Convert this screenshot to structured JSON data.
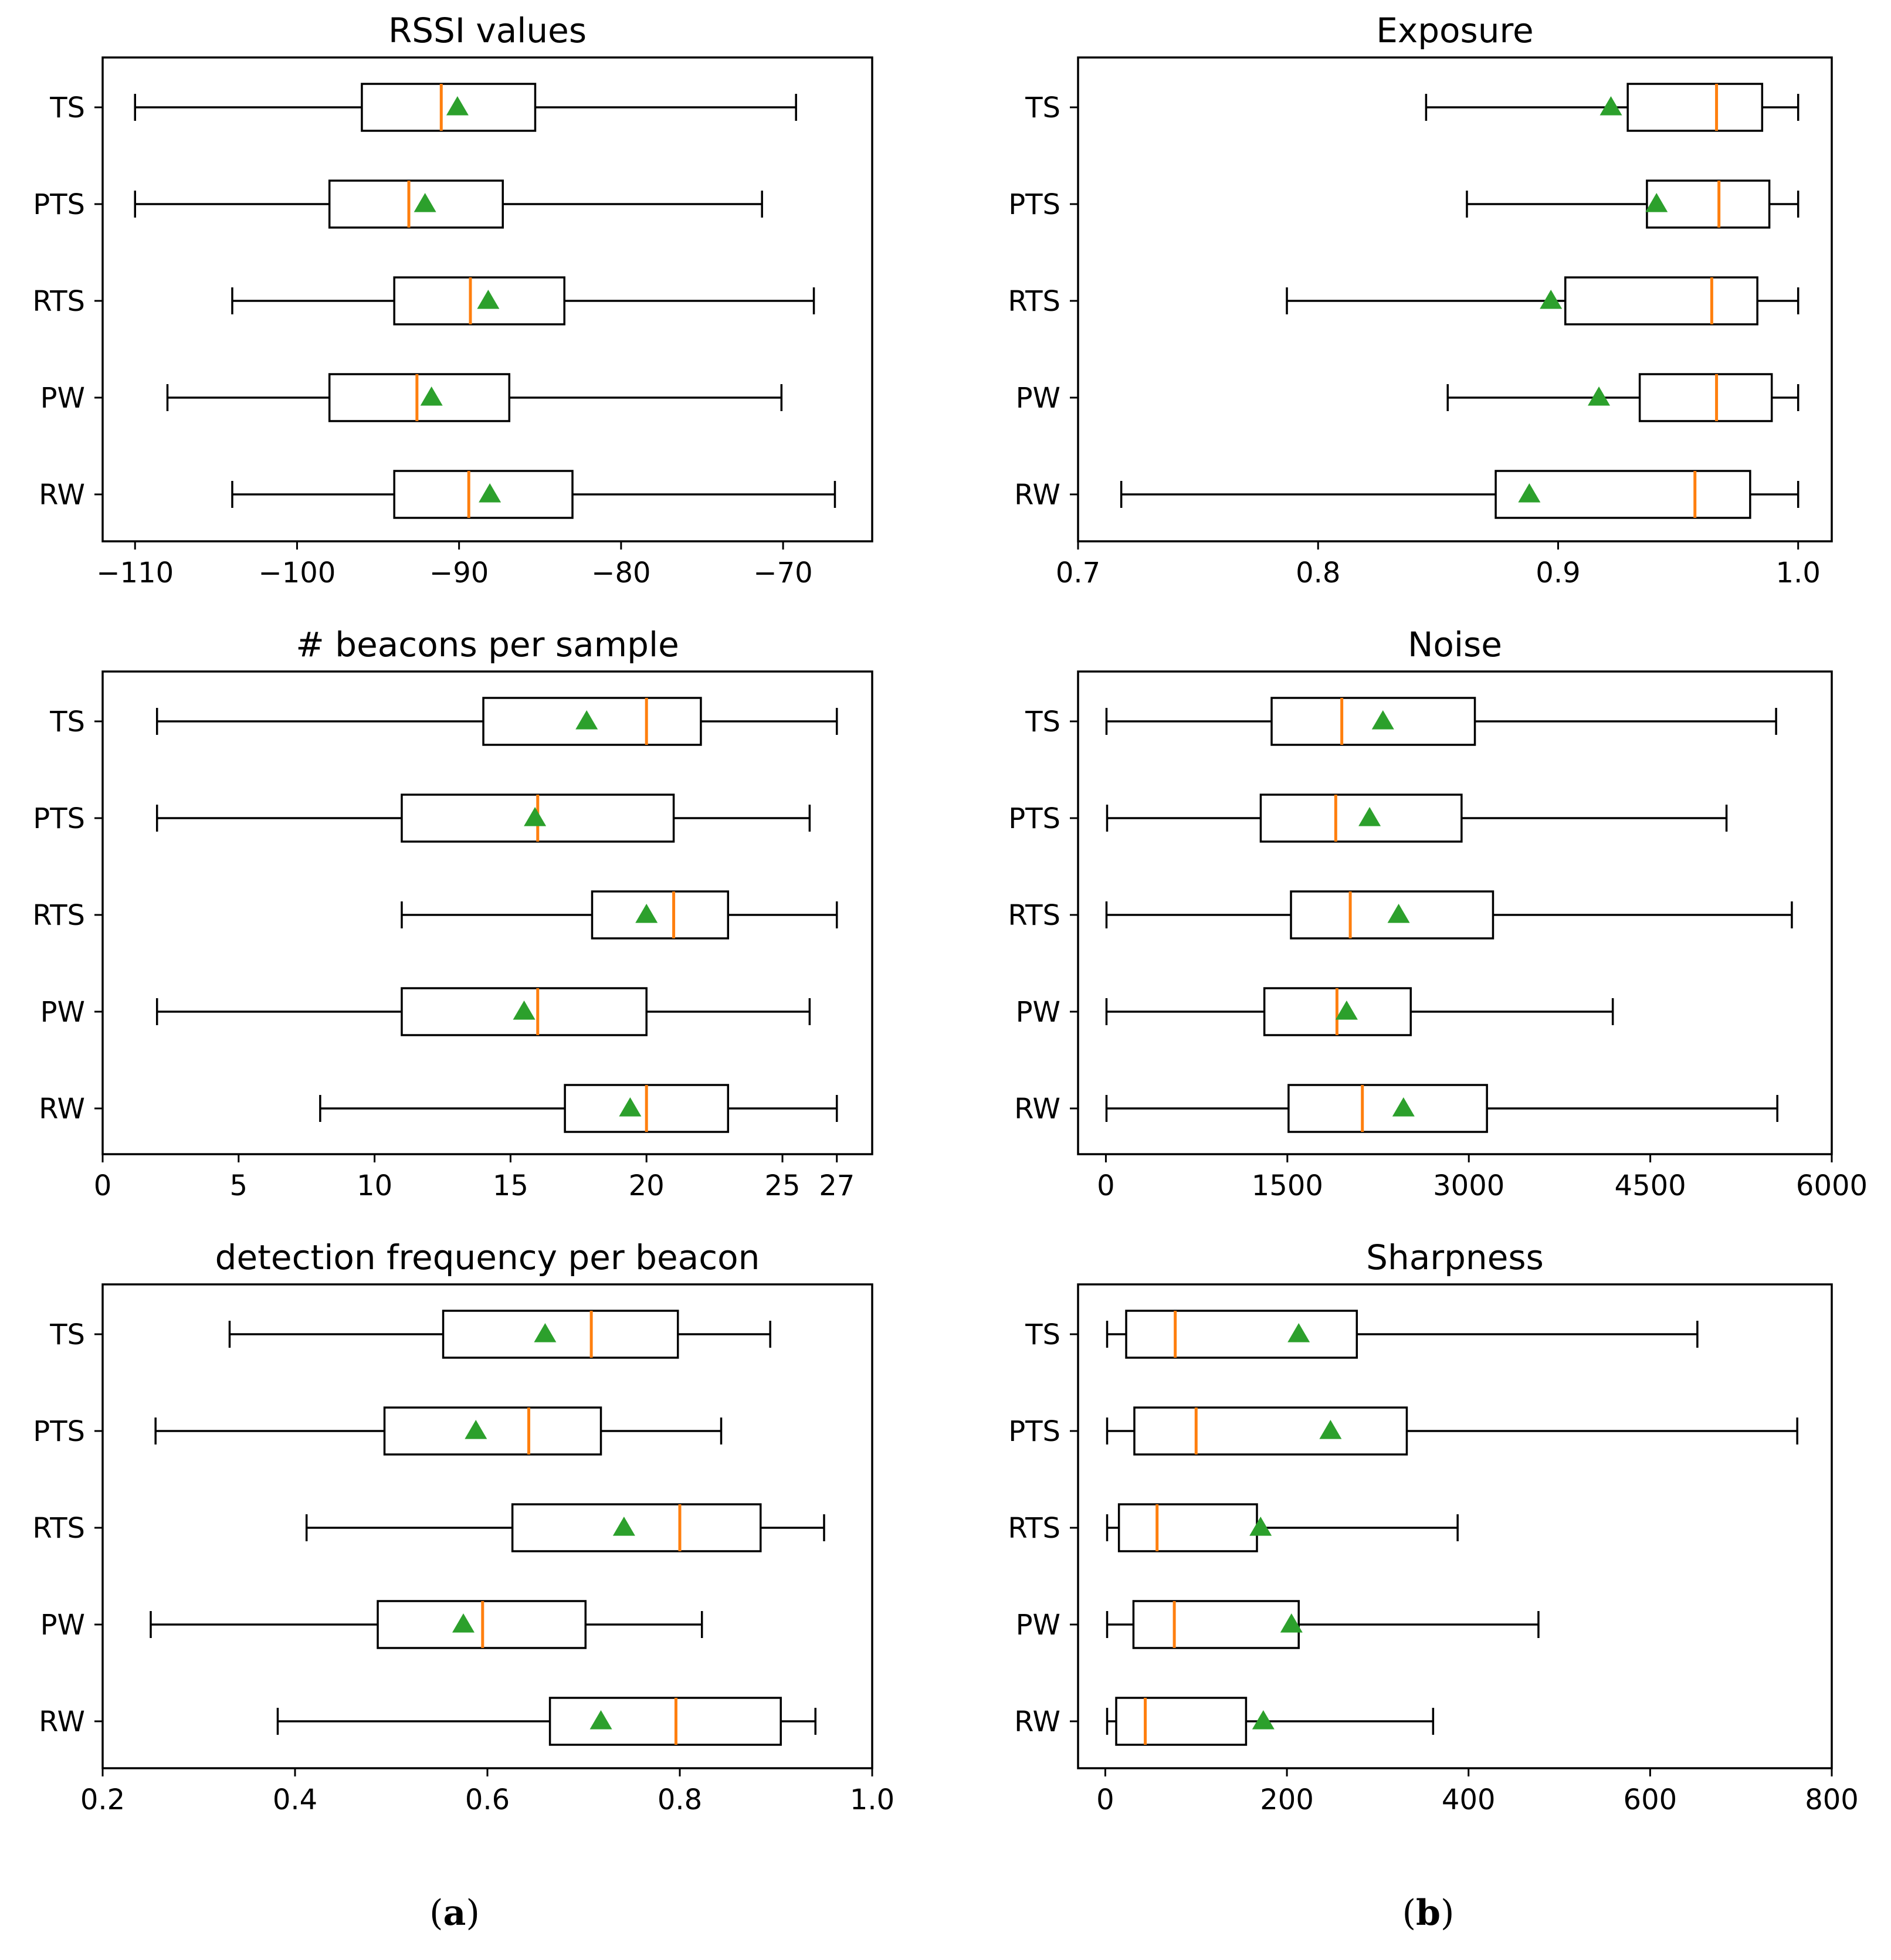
{
  "colors": {
    "box_edge": "#000000",
    "median": "#ff7f0e",
    "mean_marker": "#2ca02c",
    "background": "#ffffff"
  },
  "captions": [
    {
      "id": "a",
      "text": "a"
    },
    {
      "id": "b",
      "text": "b"
    }
  ],
  "chart_data": [
    {
      "type": "boxplot",
      "orientation": "horizontal",
      "title": "RSSI values",
      "categories": [
        "TS",
        "PTS",
        "RTS",
        "PW",
        "RW"
      ],
      "xlim": [
        -112,
        -64.5
      ],
      "xticks": [
        -110,
        -100,
        -90,
        -80,
        -70
      ],
      "xtick_labels": [
        "−110",
        "−100",
        "−90",
        "−80",
        "−70"
      ],
      "boxes": [
        {
          "label": "TS",
          "whislo": -110,
          "q1": -96,
          "med": -91.1,
          "q3": -85.3,
          "whishi": -69.2,
          "mean": -90.1
        },
        {
          "label": "PTS",
          "whislo": -110,
          "q1": -98,
          "med": -93.1,
          "q3": -87.3,
          "whishi": -71.3,
          "mean": -92.1
        },
        {
          "label": "RTS",
          "whislo": -104,
          "q1": -94,
          "med": -89.3,
          "q3": -83.5,
          "whishi": -68.1,
          "mean": -88.2
        },
        {
          "label": "PW",
          "whislo": -108,
          "q1": -98,
          "med": -92.6,
          "q3": -86.9,
          "whishi": -70.1,
          "mean": -91.7
        },
        {
          "label": "RW",
          "whislo": -104,
          "q1": -94,
          "med": -89.4,
          "q3": -83.0,
          "whishi": -66.8,
          "mean": -88.1
        }
      ]
    },
    {
      "type": "boxplot",
      "orientation": "horizontal",
      "title": "Exposure",
      "categories": [
        "TS",
        "PTS",
        "RTS",
        "PW",
        "RW"
      ],
      "xlim": [
        0.7,
        1.014
      ],
      "xticks": [
        0.7,
        0.8,
        0.9,
        1.0
      ],
      "xtick_labels": [
        "0.7",
        "0.8",
        "0.9",
        "1.0"
      ],
      "boxes": [
        {
          "label": "TS",
          "whislo": 0.845,
          "q1": 0.929,
          "med": 0.966,
          "q3": 0.985,
          "whishi": 1.0,
          "mean": 0.922
        },
        {
          "label": "PTS",
          "whislo": 0.862,
          "q1": 0.937,
          "med": 0.967,
          "q3": 0.988,
          "whishi": 1.0,
          "mean": 0.941
        },
        {
          "label": "RTS",
          "whislo": 0.787,
          "q1": 0.903,
          "med": 0.964,
          "q3": 0.983,
          "whishi": 1.0,
          "mean": 0.897
        },
        {
          "label": "PW",
          "whislo": 0.854,
          "q1": 0.934,
          "med": 0.966,
          "q3": 0.989,
          "whishi": 1.0,
          "mean": 0.917
        },
        {
          "label": "RW",
          "whislo": 0.718,
          "q1": 0.874,
          "med": 0.957,
          "q3": 0.98,
          "whishi": 1.0,
          "mean": 0.888
        }
      ]
    },
    {
      "type": "boxplot",
      "orientation": "horizontal",
      "title": "# beacons per sample",
      "categories": [
        "TS",
        "PTS",
        "RTS",
        "PW",
        "RW"
      ],
      "xlim": [
        0,
        28.3
      ],
      "xticks": [
        0,
        5,
        10,
        15,
        20,
        25,
        27
      ],
      "xtick_labels": [
        "0",
        "5",
        "10",
        "15",
        "20",
        "25",
        "27"
      ],
      "boxes": [
        {
          "label": "TS",
          "whislo": 2,
          "q1": 14,
          "med": 20,
          "q3": 22,
          "whishi": 27,
          "mean": 17.8
        },
        {
          "label": "PTS",
          "whislo": 2,
          "q1": 11,
          "med": 16,
          "q3": 21,
          "whishi": 26,
          "mean": 15.9
        },
        {
          "label": "RTS",
          "whislo": 11,
          "q1": 18,
          "med": 21,
          "q3": 23,
          "whishi": 27,
          "mean": 20.0
        },
        {
          "label": "PW",
          "whislo": 2,
          "q1": 11,
          "med": 16,
          "q3": 20,
          "whishi": 26,
          "mean": 15.5
        },
        {
          "label": "RW",
          "whislo": 8,
          "q1": 17,
          "med": 20,
          "q3": 23,
          "whishi": 27,
          "mean": 19.4
        }
      ]
    },
    {
      "type": "boxplot",
      "orientation": "horizontal",
      "title": "Noise",
      "categories": [
        "TS",
        "PTS",
        "RTS",
        "PW",
        "RW"
      ],
      "xlim": [
        -230,
        6000
      ],
      "xticks": [
        0,
        1500,
        3000,
        4500,
        6000
      ],
      "xtick_labels": [
        "0",
        "1500",
        "3000",
        "4500",
        "6000"
      ],
      "boxes": [
        {
          "label": "TS",
          "whislo": 5,
          "q1": 1370,
          "med": 1950,
          "q3": 3050,
          "whishi": 5540,
          "mean": 2290
        },
        {
          "label": "PTS",
          "whislo": 10,
          "q1": 1280,
          "med": 1900,
          "q3": 2940,
          "whishi": 5130,
          "mean": 2180
        },
        {
          "label": "RTS",
          "whislo": 5,
          "q1": 1530,
          "med": 2020,
          "q3": 3200,
          "whishi": 5670,
          "mean": 2420
        },
        {
          "label": "PW",
          "whislo": 5,
          "q1": 1310,
          "med": 1910,
          "q3": 2520,
          "whishi": 4190,
          "mean": 1990
        },
        {
          "label": "RW",
          "whislo": 5,
          "q1": 1510,
          "med": 2120,
          "q3": 3150,
          "whishi": 5550,
          "mean": 2460
        }
      ]
    },
    {
      "type": "boxplot",
      "orientation": "horizontal",
      "title": "detection frequency per beacon",
      "categories": [
        "TS",
        "PTS",
        "RTS",
        "PW",
        "RW"
      ],
      "xlim": [
        0.2,
        1.0
      ],
      "xticks": [
        0.2,
        0.4,
        0.6,
        0.8,
        1.0
      ],
      "xtick_labels": [
        "0.2",
        "0.4",
        "0.6",
        "0.8",
        "1.0"
      ],
      "boxes": [
        {
          "label": "TS",
          "whislo": 0.332,
          "q1": 0.554,
          "med": 0.708,
          "q3": 0.798,
          "whishi": 0.894,
          "mean": 0.66
        },
        {
          "label": "PTS",
          "whislo": 0.255,
          "q1": 0.493,
          "med": 0.643,
          "q3": 0.718,
          "whishi": 0.843,
          "mean": 0.588
        },
        {
          "label": "RTS",
          "whislo": 0.412,
          "q1": 0.626,
          "med": 0.8,
          "q3": 0.884,
          "whishi": 0.95,
          "mean": 0.742
        },
        {
          "label": "PW",
          "whislo": 0.25,
          "q1": 0.486,
          "med": 0.595,
          "q3": 0.702,
          "whishi": 0.823,
          "mean": 0.575
        },
        {
          "label": "RW",
          "whislo": 0.382,
          "q1": 0.665,
          "med": 0.796,
          "q3": 0.905,
          "whishi": 0.941,
          "mean": 0.718
        }
      ]
    },
    {
      "type": "boxplot",
      "orientation": "horizontal",
      "title": "Sharpness",
      "categories": [
        "TS",
        "PTS",
        "RTS",
        "PW",
        "RW"
      ],
      "xlim": [
        -30,
        800
      ],
      "xticks": [
        0,
        200,
        400,
        600,
        800
      ],
      "xtick_labels": [
        "0",
        "200",
        "400",
        "600",
        "800"
      ],
      "boxes": [
        {
          "label": "TS",
          "whislo": 2,
          "q1": 23,
          "med": 77,
          "q3": 277,
          "whishi": 652,
          "mean": 213
        },
        {
          "label": "PTS",
          "whislo": 2,
          "q1": 32,
          "med": 100,
          "q3": 332,
          "whishi": 762,
          "mean": 248
        },
        {
          "label": "RTS",
          "whislo": 2,
          "q1": 15,
          "med": 57,
          "q3": 167,
          "whishi": 388,
          "mean": 171
        },
        {
          "label": "PW",
          "whislo": 2,
          "q1": 31,
          "med": 76,
          "q3": 213,
          "whishi": 477,
          "mean": 205
        },
        {
          "label": "RW",
          "whislo": 2,
          "q1": 12,
          "med": 44,
          "q3": 155,
          "whishi": 361,
          "mean": 174
        }
      ]
    }
  ]
}
